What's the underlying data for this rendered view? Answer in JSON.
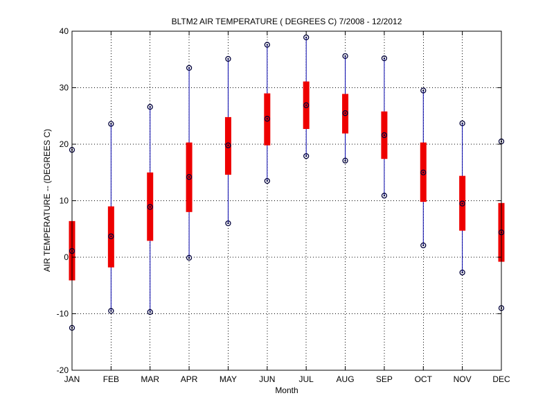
{
  "chart_data": {
    "type": "boxplot",
    "title": "BLTM2  AIR TEMPERATURE ( DEGREES C) 7/2008 - 12/2012",
    "xlabel": "Month",
    "ylabel": "AIR TEMPERATURE -- (DEGREES C)",
    "ylim": [
      -20,
      40
    ],
    "yticks": [
      -20,
      -10,
      0,
      10,
      20,
      30,
      40
    ],
    "grid": true,
    "categories": [
      "JAN",
      "FEB",
      "MAR",
      "APR",
      "MAY",
      "JUN",
      "JUL",
      "AUG",
      "SEP",
      "OCT",
      "NOV",
      "DEC"
    ],
    "series": [
      {
        "min": [
          -12.5,
          -9.5,
          -9.7,
          -0.1,
          6.0,
          13.5,
          17.9,
          17.1,
          10.9,
          2.1,
          -2.7,
          -9.0
        ],
        "q1": [
          -4.1,
          -1.8,
          2.9,
          8.0,
          14.6,
          19.8,
          22.7,
          21.9,
          17.4,
          9.8,
          4.7,
          -0.8
        ],
        "median": [
          1.1,
          3.7,
          8.9,
          14.2,
          19.8,
          24.5,
          26.9,
          25.5,
          21.6,
          15.0,
          9.5,
          4.4
        ],
        "q3": [
          6.4,
          9.0,
          15.0,
          20.3,
          24.8,
          29.0,
          31.1,
          28.9,
          25.8,
          20.3,
          14.4,
          9.6
        ],
        "max": [
          19.0,
          23.6,
          26.6,
          33.5,
          35.1,
          37.6,
          38.9,
          35.6,
          35.2,
          29.5,
          23.7,
          20.5
        ]
      }
    ],
    "colors": {
      "whisker": "#0000aa",
      "box": "#ee0000",
      "marker": "#00003a",
      "grid": "#000000"
    }
  }
}
